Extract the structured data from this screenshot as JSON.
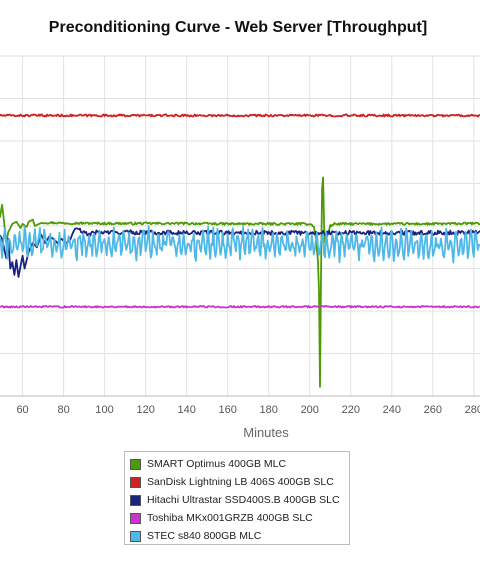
{
  "chart_data": {
    "type": "line",
    "title": "Preconditioning Curve - Web Server [Throughput]",
    "xlabel": "Minutes",
    "xlim": [
      49,
      283
    ],
    "x_ticks": [
      60,
      80,
      100,
      120,
      140,
      160,
      180,
      200,
      220,
      240,
      260,
      280
    ],
    "ylim": [
      0,
      8
    ],
    "grid": true,
    "legend_position": "bottom",
    "series": [
      {
        "name": "SMART Optimus 400GB MLC",
        "color": "#4e9a06",
        "points": [
          [
            49,
            4.2
          ],
          [
            50,
            4.5
          ],
          [
            51,
            4.1
          ],
          [
            52,
            3.6
          ],
          [
            53,
            3.85
          ],
          [
            55,
            4.05
          ],
          [
            57,
            4.1
          ],
          [
            59,
            3.95
          ],
          [
            60,
            4.05
          ],
          [
            62,
            3.98
          ],
          [
            63,
            4.1
          ],
          [
            65,
            4.15
          ],
          [
            66,
            4.0
          ],
          [
            68,
            4.05
          ],
          [
            70,
            4.08
          ],
          [
            80,
            4.07
          ],
          [
            100,
            4.06
          ],
          [
            120,
            4.06
          ],
          [
            140,
            4.06
          ],
          [
            160,
            4.05
          ],
          [
            180,
            4.05
          ],
          [
            200,
            4.05
          ],
          [
            202,
            4.0
          ],
          [
            203,
            3.7
          ],
          [
            204,
            3.2
          ],
          [
            204.5,
            2.5
          ],
          [
            205,
            0.2
          ],
          [
            205.5,
            2.8
          ],
          [
            206,
            4.9
          ],
          [
            206.5,
            5.15
          ],
          [
            207,
            4.0
          ],
          [
            207.5,
            3.6
          ],
          [
            208,
            3.7
          ],
          [
            209,
            3.85
          ],
          [
            210,
            4.0
          ],
          [
            212,
            4.05
          ],
          [
            230,
            4.05
          ],
          [
            260,
            4.05
          ],
          [
            283,
            4.06
          ]
        ],
        "noise": 0.05,
        "noise_from": 70
      },
      {
        "name": "SanDisk Lightning LB 406S 400GB SLC",
        "color": "#cc2222",
        "points": [
          [
            49,
            6.6
          ],
          [
            283,
            6.6
          ]
        ],
        "noise": 0.05,
        "noise_from": 49
      },
      {
        "name": "Hitachi Ultrastar SSD400S.B 400GB SLC",
        "color": "#1a237e",
        "points": [
          [
            49,
            3.78
          ],
          [
            50,
            3.7
          ],
          [
            52,
            3.25
          ],
          [
            53,
            3.7
          ],
          [
            54,
            3.0
          ],
          [
            55,
            3.15
          ],
          [
            56,
            2.85
          ],
          [
            57,
            3.2
          ],
          [
            58,
            2.8
          ],
          [
            60,
            3.3
          ],
          [
            61,
            3.0
          ],
          [
            63,
            3.4
          ],
          [
            65,
            3.6
          ],
          [
            67,
            3.5
          ],
          [
            69,
            3.8
          ],
          [
            71,
            3.6
          ],
          [
            73,
            3.75
          ],
          [
            75,
            3.7
          ],
          [
            77,
            3.6
          ],
          [
            79,
            3.7
          ],
          [
            81,
            3.6
          ],
          [
            83,
            3.65
          ],
          [
            85,
            3.9
          ],
          [
            87,
            3.95
          ],
          [
            89,
            3.85
          ],
          [
            92,
            3.8
          ],
          [
            95,
            3.85
          ],
          [
            100,
            3.85
          ],
          [
            120,
            3.85
          ],
          [
            140,
            3.84
          ],
          [
            160,
            3.84
          ],
          [
            180,
            3.84
          ],
          [
            200,
            3.84
          ],
          [
            230,
            3.84
          ],
          [
            260,
            3.84
          ],
          [
            283,
            3.85
          ]
        ],
        "noise": 0.1,
        "noise_from": 85
      },
      {
        "name": "Toshiba MKx001GRZB 400GB SLC",
        "color": "#cc33cc",
        "points": [
          [
            49,
            2.1
          ],
          [
            283,
            2.1
          ]
        ],
        "noise": 0.04,
        "noise_from": 49
      },
      {
        "name": "STEC s840 800GB MLC",
        "color": "#4fb8e6",
        "points": [
          [
            49,
            3.6
          ],
          [
            283,
            3.55
          ]
        ],
        "noise": 0.38,
        "noise_from": 49
      }
    ]
  }
}
